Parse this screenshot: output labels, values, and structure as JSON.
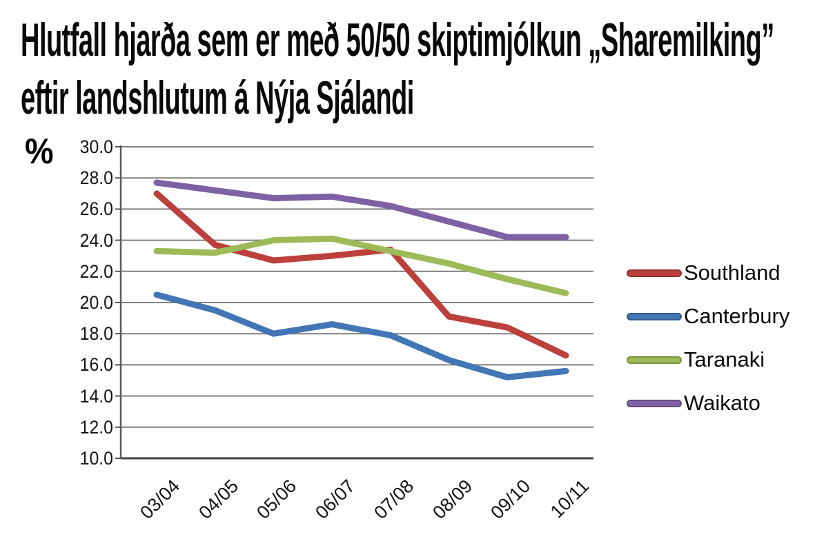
{
  "chart_data": {
    "type": "line",
    "title": "Hlutfall hjarða sem er með 50/50 skiptimjólkun „Sharemilking” eftir landshlutum á Nýja Sjálandi",
    "title_lines": [
      "Hlutfall hjarða sem er með 50/50 skiptimjólkun „Sharemilking”",
      "eftir landshlutum á Nýja Sjálandi"
    ],
    "ylabel": "%",
    "xlabel": "",
    "categories": [
      "03/04",
      "04/05",
      "05/06",
      "06/07",
      "07/08",
      "08/09",
      "09/10",
      "10/11"
    ],
    "series": [
      {
        "name": "Southland",
        "color": "#bc403c",
        "values": [
          27.0,
          23.7,
          22.7,
          23.0,
          23.4,
          19.1,
          18.4,
          16.6
        ]
      },
      {
        "name": "Canterbury",
        "color": "#4276b5",
        "values": [
          20.5,
          19.5,
          18.0,
          18.6,
          17.9,
          16.3,
          15.2,
          15.6
        ]
      },
      {
        "name": "Taranaki",
        "color": "#9cbb58",
        "values": [
          23.3,
          23.2,
          24.0,
          24.1,
          23.3,
          22.5,
          21.5,
          20.6
        ]
      },
      {
        "name": "Waikato",
        "color": "#7d61a3",
        "values": [
          27.7,
          27.2,
          26.7,
          26.8,
          26.2,
          25.2,
          24.2,
          24.2
        ]
      }
    ],
    "ylim": [
      10.0,
      30.0
    ],
    "ytick_step": 2.0,
    "ytick_decimals": 1,
    "x_tick_rotation_deg": -45,
    "grid": "horizontal",
    "legend_position": "right",
    "gridline_color": "#7f7f7f",
    "axis_color": "#595959",
    "baseline_color": "#3f3f3f"
  }
}
